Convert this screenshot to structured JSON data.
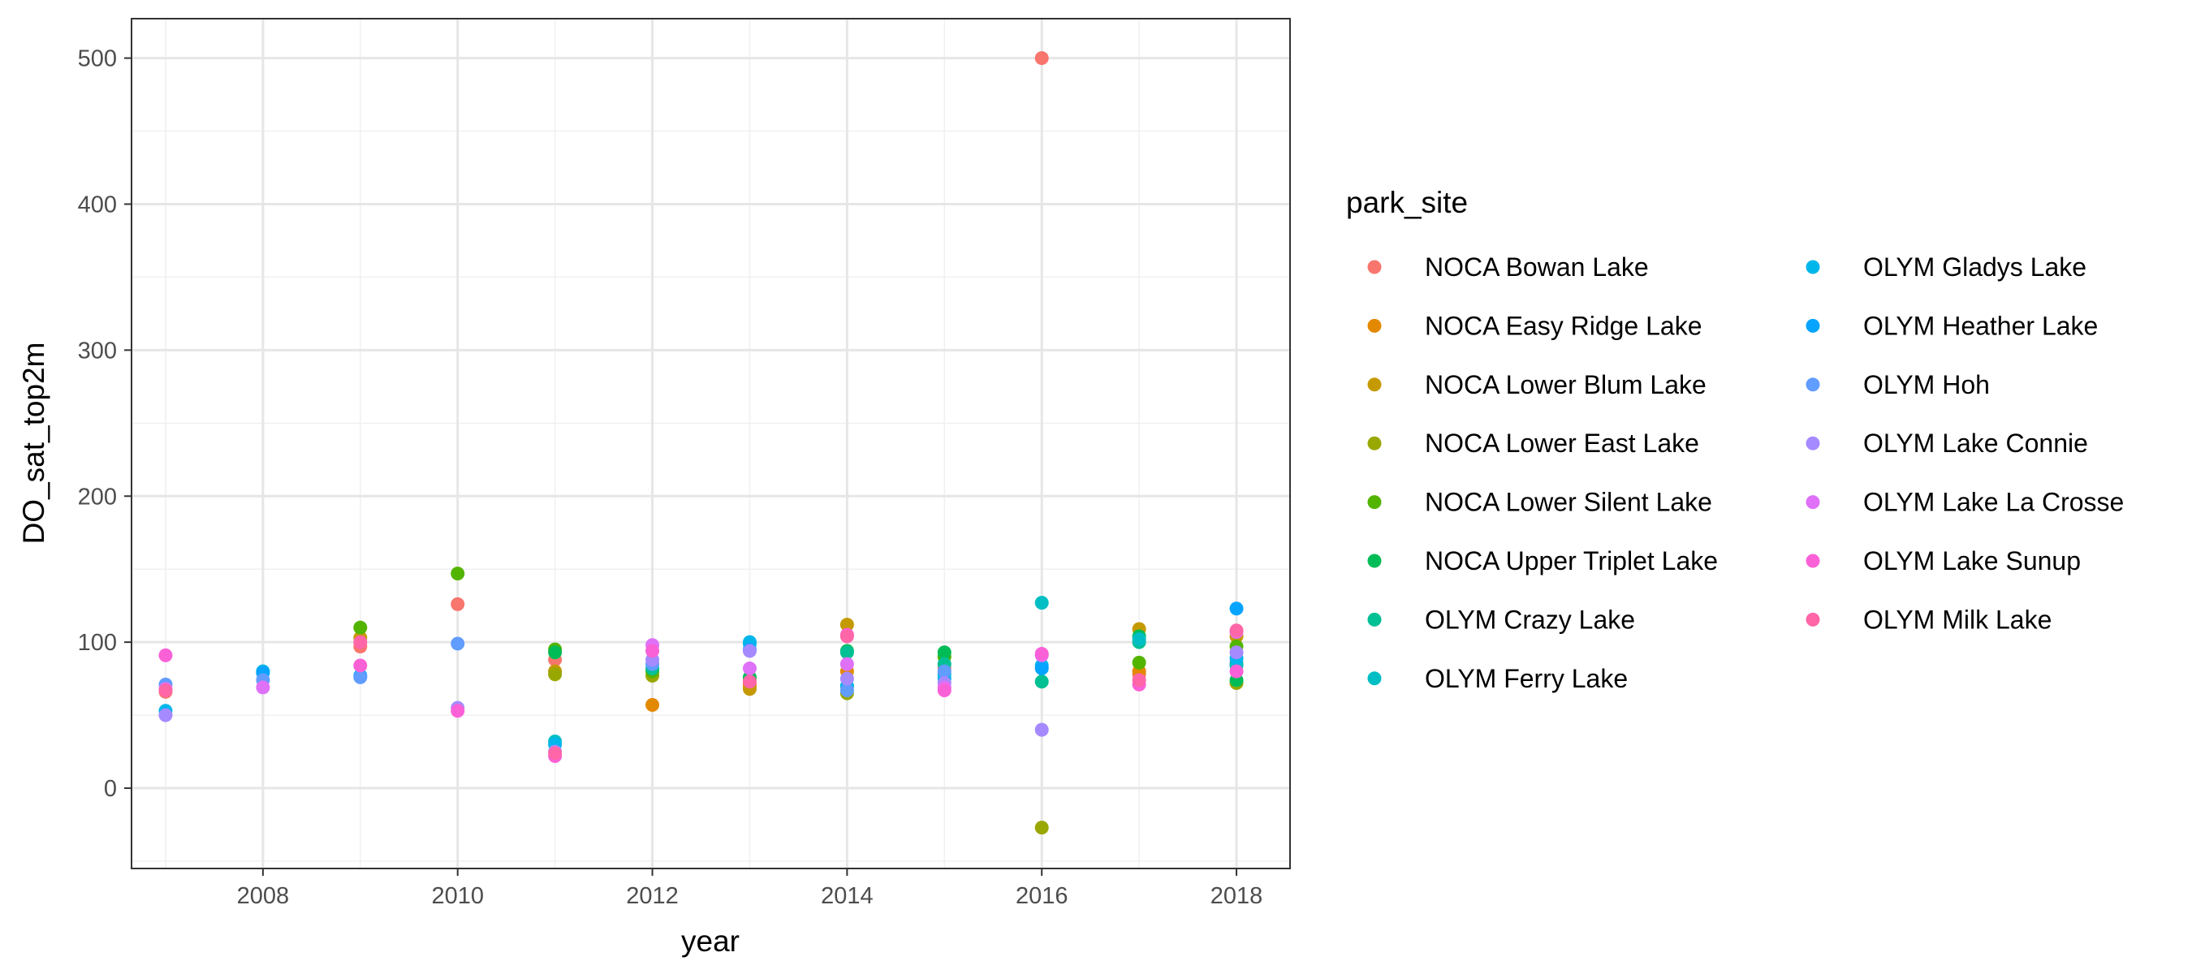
{
  "chart_data": {
    "type": "scatter",
    "xlabel": "year",
    "ylabel": "DO_sat_top2m",
    "xlim": [
      2006.65,
      2018.55
    ],
    "ylim": [
      -55,
      527
    ],
    "x_ticks": [
      2008,
      2010,
      2012,
      2014,
      2016,
      2018
    ],
    "y_ticks": [
      0,
      100,
      200,
      300,
      400,
      500
    ],
    "grid": true,
    "legend": {
      "title": "park_site",
      "placement": "right",
      "columns": 2
    },
    "series": [
      {
        "name": "NOCA Bowan Lake",
        "color": "#F8766D",
        "points": [
          [
            2007,
            66
          ],
          [
            2009,
            97
          ],
          [
            2010,
            126
          ],
          [
            2011,
            88
          ],
          [
            2013,
            72
          ],
          [
            2015,
            82
          ],
          [
            2016,
            500
          ],
          [
            2017,
            78
          ],
          [
            2018,
            86
          ]
        ]
      },
      {
        "name": "NOCA Easy Ridge Lake",
        "color": "#E38900",
        "points": [
          [
            2012,
            57
          ],
          [
            2013,
            70
          ],
          [
            2014,
            80
          ],
          [
            2017,
            80
          ]
        ]
      },
      {
        "name": "NOCA Lower Blum Lake",
        "color": "#C49A00",
        "points": [
          [
            2009,
            103
          ],
          [
            2011,
            80
          ],
          [
            2013,
            68
          ],
          [
            2014,
            112
          ],
          [
            2017,
            109
          ],
          [
            2018,
            104
          ]
        ]
      },
      {
        "name": "NOCA Lower East Lake",
        "color": "#99A800",
        "points": [
          [
            2011,
            78
          ],
          [
            2012,
            77
          ],
          [
            2013,
            75
          ],
          [
            2014,
            65
          ],
          [
            2016,
            -27
          ],
          [
            2018,
            72
          ]
        ]
      },
      {
        "name": "NOCA Lower Silent Lake",
        "color": "#53B400",
        "points": [
          [
            2009,
            110
          ],
          [
            2010,
            147
          ],
          [
            2011,
            95
          ],
          [
            2012,
            80
          ],
          [
            2014,
            70
          ],
          [
            2015,
            90
          ],
          [
            2017,
            86
          ],
          [
            2018,
            97
          ]
        ]
      },
      {
        "name": "NOCA Upper Triplet Lake",
        "color": "#00BC56",
        "points": [
          [
            2011,
            93
          ],
          [
            2013,
            76
          ],
          [
            2014,
            94
          ],
          [
            2015,
            93
          ],
          [
            2017,
            104
          ],
          [
            2018,
            74
          ]
        ]
      },
      {
        "name": "OLYM Crazy Lake",
        "color": "#00C094",
        "points": [
          [
            2012,
            82
          ],
          [
            2014,
            93
          ],
          [
            2015,
            85
          ],
          [
            2016,
            73
          ],
          [
            2017,
            100
          ],
          [
            2018,
            84
          ]
        ]
      },
      {
        "name": "OLYM Ferry Lake",
        "color": "#00BFC4",
        "points": [
          [
            2011,
            32
          ],
          [
            2013,
            99
          ],
          [
            2015,
            78
          ],
          [
            2016,
            127
          ],
          [
            2017,
            102
          ],
          [
            2018,
            85
          ]
        ]
      },
      {
        "name": "OLYM Gladys Lake",
        "color": "#00B6EB",
        "points": [
          [
            2007,
            53
          ],
          [
            2008,
            80
          ],
          [
            2011,
            30
          ],
          [
            2013,
            100
          ],
          [
            2014,
            70
          ],
          [
            2015,
            75
          ],
          [
            2016,
            84
          ],
          [
            2018,
            89
          ]
        ]
      },
      {
        "name": "OLYM Heather Lake",
        "color": "#06A4FF",
        "points": [
          [
            2008,
            79
          ],
          [
            2009,
            77
          ],
          [
            2013,
            95
          ],
          [
            2016,
            82
          ],
          [
            2018,
            123
          ]
        ]
      },
      {
        "name": "OLYM Hoh",
        "color": "#619CFF",
        "points": [
          [
            2007,
            71
          ],
          [
            2008,
            74
          ],
          [
            2009,
            76
          ],
          [
            2010,
            99
          ],
          [
            2012,
            85
          ],
          [
            2014,
            67
          ],
          [
            2015,
            80
          ]
        ]
      },
      {
        "name": "OLYM Lake Connie",
        "color": "#A58AFF",
        "points": [
          [
            2007,
            50
          ],
          [
            2010,
            55
          ],
          [
            2011,
            25
          ],
          [
            2012,
            88
          ],
          [
            2013,
            94
          ],
          [
            2014,
            75
          ],
          [
            2015,
            72
          ],
          [
            2016,
            40
          ],
          [
            2018,
            93
          ]
        ]
      },
      {
        "name": "OLYM Lake La Crosse",
        "color": "#DF70F8",
        "points": [
          [
            2007,
            68
          ],
          [
            2008,
            69
          ],
          [
            2012,
            98
          ],
          [
            2013,
            82
          ],
          [
            2014,
            85
          ],
          [
            2015,
            69
          ],
          [
            2016,
            91
          ],
          [
            2018,
            107
          ]
        ]
      },
      {
        "name": "OLYM Lake Sunup",
        "color": "#FB61D7",
        "points": [
          [
            2007,
            91
          ],
          [
            2009,
            84
          ],
          [
            2010,
            53
          ],
          [
            2011,
            22
          ],
          [
            2012,
            94
          ],
          [
            2014,
            105
          ],
          [
            2015,
            67
          ],
          [
            2016,
            92
          ],
          [
            2017,
            71
          ],
          [
            2018,
            80
          ]
        ]
      },
      {
        "name": "OLYM Milk Lake",
        "color": "#FF66A8",
        "points": [
          [
            2007,
            67
          ],
          [
            2009,
            100
          ],
          [
            2011,
            24
          ],
          [
            2013,
            73
          ],
          [
            2014,
            104
          ],
          [
            2017,
            74
          ],
          [
            2018,
            108
          ]
        ]
      }
    ]
  }
}
